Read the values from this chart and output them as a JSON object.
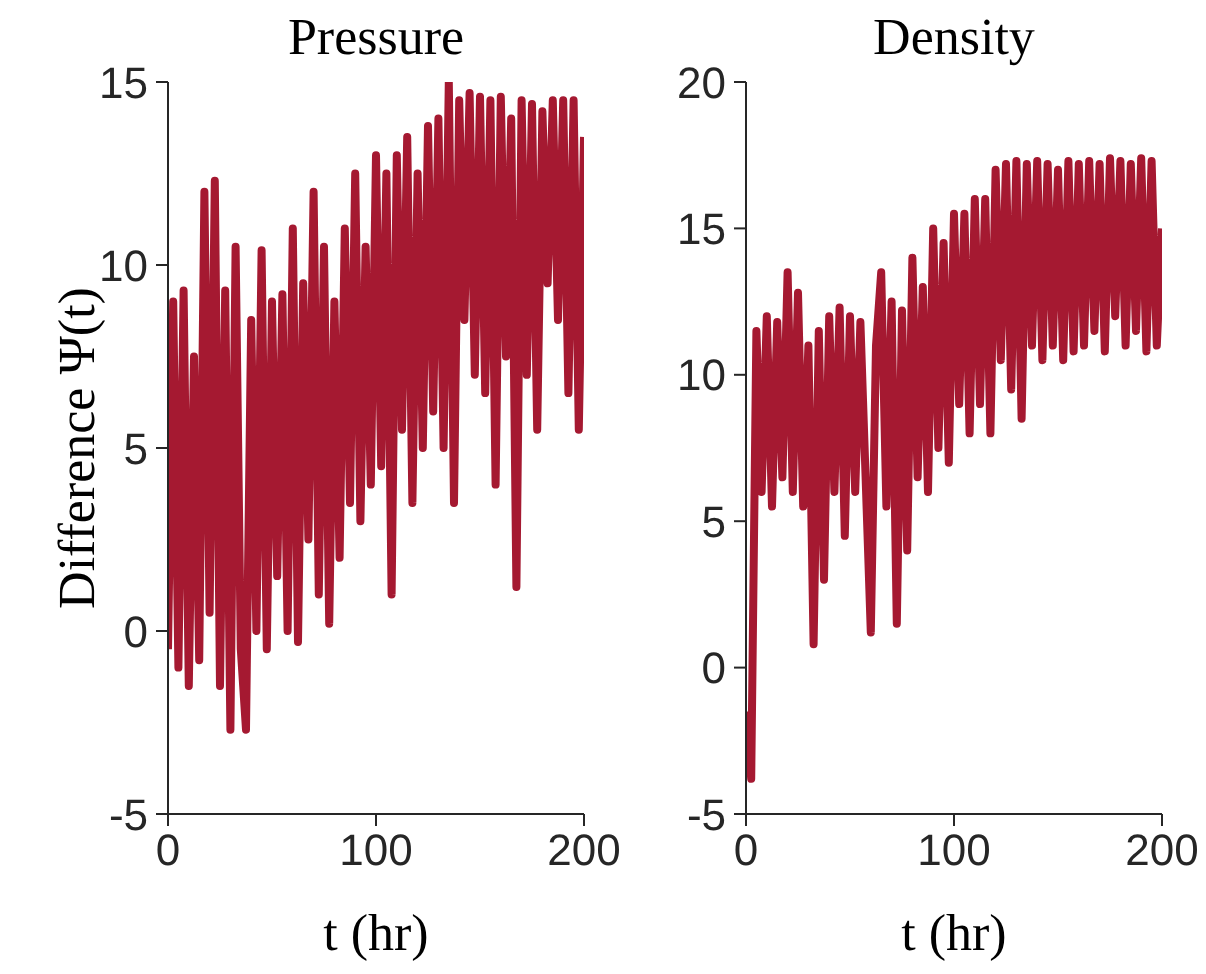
{
  "chart_data": [
    {
      "type": "line",
      "title": "Pressure",
      "xlabel": "t (hr)",
      "ylabel": "Difference Ψ(t)",
      "xlim": [
        0,
        200
      ],
      "xticks": [
        0,
        100,
        200
      ],
      "ylim": [
        -5,
        15
      ],
      "yticks": [
        -5,
        0,
        5,
        10,
        15
      ],
      "grid": false,
      "marker": "none",
      "line_style": "solid",
      "x": [
        0,
        2.5,
        5,
        7.5,
        10,
        12.5,
        15,
        17.5,
        20,
        22.5,
        25,
        27.5,
        30,
        32.5,
        35,
        37.5,
        40,
        42.5,
        45,
        47.5,
        50,
        52.5,
        55,
        57.5,
        60,
        62.5,
        65,
        67.5,
        70,
        72.5,
        75,
        77.5,
        80,
        82.5,
        85,
        87.5,
        90,
        92.5,
        95,
        97.5,
        100,
        102.5,
        105,
        107.5,
        110,
        112.5,
        115,
        117.5,
        120,
        122.5,
        125,
        127.5,
        130,
        132.5,
        135,
        137.5,
        140,
        142.5,
        145,
        147.5,
        150,
        152.5,
        155,
        157.5,
        160,
        162.5,
        165,
        167.5,
        170,
        172.5,
        175,
        177.5,
        180,
        182.5,
        185,
        187.5,
        190,
        192.5,
        195,
        197.5,
        200
      ],
      "series": [
        {
          "color": "#a51931",
          "values": [
            -0.5,
            9,
            -1,
            9.3,
            -1.5,
            7.5,
            -0.8,
            12,
            0.5,
            12.3,
            -1.5,
            9.3,
            -2.7,
            10.5,
            -0.5,
            -2.7,
            8.5,
            0,
            10.4,
            -0.5,
            9,
            1.5,
            9.2,
            0,
            11,
            -0.3,
            9.5,
            2.5,
            12,
            1,
            10.5,
            0.2,
            9,
            2,
            11,
            3.5,
            12.5,
            3,
            10.5,
            4,
            13,
            4.5,
            12.5,
            1,
            13,
            5.5,
            13.5,
            3.5,
            12.5,
            5,
            13.8,
            6,
            14,
            5,
            15,
            3.5,
            14.5,
            8.5,
            14.7,
            7,
            14.6,
            6.5,
            14.5,
            4,
            14.6,
            7.5,
            14,
            1.2,
            14.5,
            7,
            14.4,
            5.5,
            14.2,
            9.5,
            14.5,
            8.5,
            14.5,
            6.5,
            14.5,
            5.5,
            13.5
          ]
        }
      ]
    },
    {
      "type": "line",
      "title": "Density",
      "xlabel": "t (hr)",
      "xlim": [
        0,
        200
      ],
      "xticks": [
        0,
        100,
        200
      ],
      "ylim": [
        -5,
        20
      ],
      "yticks": [
        -5,
        0,
        5,
        10,
        15,
        20
      ],
      "grid": false,
      "marker": "none",
      "line_style": "solid",
      "x": [
        0,
        2.5,
        5,
        7.5,
        10,
        12.5,
        15,
        17.5,
        20,
        22.5,
        25,
        27.5,
        30,
        32.5,
        35,
        37.5,
        40,
        42.5,
        45,
        47.5,
        50,
        52.5,
        55,
        57.5,
        60,
        62.5,
        65,
        67.5,
        70,
        72.5,
        75,
        77.5,
        80,
        82.5,
        85,
        87.5,
        90,
        92.5,
        95,
        97.5,
        100,
        102.5,
        105,
        107.5,
        110,
        112.5,
        115,
        117.5,
        120,
        122.5,
        125,
        127.5,
        130,
        132.5,
        135,
        137.5,
        140,
        142.5,
        145,
        147.5,
        150,
        152.5,
        155,
        157.5,
        160,
        162.5,
        165,
        167.5,
        170,
        172.5,
        175,
        177.5,
        180,
        182.5,
        185,
        187.5,
        190,
        192.5,
        195,
        197.5,
        200
      ],
      "series": [
        {
          "color": "#a51931",
          "values": [
            -1.5,
            -3.8,
            11.5,
            6,
            12,
            5.5,
            11.8,
            6.5,
            13.5,
            6,
            12.8,
            5.5,
            11,
            0.8,
            11.5,
            3,
            12,
            6,
            12.3,
            4.5,
            12,
            6,
            11.8,
            6.5,
            1.2,
            11,
            13.5,
            5.5,
            12.5,
            1.5,
            12.2,
            4,
            14,
            6.5,
            13,
            6,
            15,
            7.5,
            14.5,
            7,
            15.5,
            9,
            15.5,
            8,
            16,
            9,
            16,
            8,
            17,
            10.5,
            17.2,
            9.5,
            17.3,
            8.5,
            17.2,
            11,
            17.3,
            10.5,
            17.2,
            11,
            17,
            10.5,
            17.3,
            10.8,
            17.2,
            11,
            17.3,
            11.5,
            17.2,
            10.8,
            17.4,
            12,
            17.3,
            11,
            17.2,
            11.5,
            17.4,
            10.8,
            17.3,
            11,
            15
          ]
        }
      ]
    }
  ]
}
